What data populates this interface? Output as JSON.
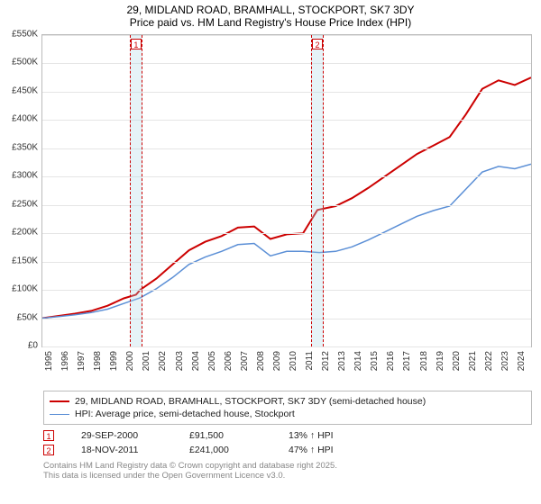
{
  "title": {
    "line1": "29, MIDLAND ROAD, BRAMHALL, STOCKPORT, SK7 3DY",
    "line2": "Price paid vs. HM Land Registry's House Price Index (HPI)"
  },
  "chart": {
    "type": "line",
    "background_color": "#ffffff",
    "grid_color": "#e5e5e5",
    "axis_color": "#bbbbbb",
    "x": {
      "min": 1995,
      "max": 2025,
      "ticks": [
        1995,
        1996,
        1997,
        1998,
        1999,
        2000,
        2001,
        2002,
        2003,
        2004,
        2005,
        2006,
        2007,
        2008,
        2009,
        2010,
        2011,
        2012,
        2013,
        2014,
        2015,
        2016,
        2017,
        2018,
        2019,
        2020,
        2021,
        2022,
        2023,
        2024
      ],
      "label_fontsize": 10
    },
    "y": {
      "min": 0,
      "max": 550000,
      "ticks": [
        0,
        50000,
        100000,
        150000,
        200000,
        250000,
        300000,
        350000,
        400000,
        450000,
        500000,
        550000
      ],
      "tick_labels": [
        "£0",
        "£50K",
        "£100K",
        "£150K",
        "£200K",
        "£250K",
        "£300K",
        "£350K",
        "£400K",
        "£450K",
        "£500K",
        "£550K"
      ],
      "label_fontsize": 10
    },
    "sale_bands": [
      {
        "id": "1",
        "year": 2000.75,
        "width_years": 0.8
      },
      {
        "id": "2",
        "year": 2011.88,
        "width_years": 0.8
      }
    ],
    "sale_band_fill": "rgba(173,216,230,0.30)",
    "sale_band_border": "#cc0000",
    "series": [
      {
        "key": "subject",
        "label": "29, MIDLAND ROAD, BRAMHALL, STOCKPORT, SK7 3DY (semi-detached house)",
        "color": "#cc0000",
        "line_width": 2,
        "points": [
          [
            1995,
            50000
          ],
          [
            1996,
            54000
          ],
          [
            1997,
            58000
          ],
          [
            1998,
            63000
          ],
          [
            1999,
            72000
          ],
          [
            2000,
            85000
          ],
          [
            2000.75,
            91500
          ],
          [
            2001,
            100000
          ],
          [
            2002,
            120000
          ],
          [
            2003,
            145000
          ],
          [
            2004,
            170000
          ],
          [
            2005,
            185000
          ],
          [
            2006,
            195000
          ],
          [
            2007,
            210000
          ],
          [
            2008,
            212000
          ],
          [
            2009,
            190000
          ],
          [
            2010,
            198000
          ],
          [
            2011,
            200000
          ],
          [
            2011.88,
            241000
          ],
          [
            2012,
            242000
          ],
          [
            2013,
            248000
          ],
          [
            2014,
            262000
          ],
          [
            2015,
            280000
          ],
          [
            2016,
            300000
          ],
          [
            2017,
            320000
          ],
          [
            2018,
            340000
          ],
          [
            2019,
            355000
          ],
          [
            2020,
            370000
          ],
          [
            2021,
            410000
          ],
          [
            2022,
            455000
          ],
          [
            2023,
            470000
          ],
          [
            2024,
            462000
          ],
          [
            2025,
            475000
          ]
        ]
      },
      {
        "key": "hpi",
        "label": "HPI: Average price, semi-detached house, Stockport",
        "color": "#5b8fd6",
        "line_width": 1.5,
        "points": [
          [
            1995,
            50000
          ],
          [
            1996,
            53000
          ],
          [
            1997,
            56000
          ],
          [
            1998,
            60000
          ],
          [
            1999,
            66000
          ],
          [
            2000,
            76000
          ],
          [
            2001,
            86000
          ],
          [
            2002,
            102000
          ],
          [
            2003,
            122000
          ],
          [
            2004,
            145000
          ],
          [
            2005,
            158000
          ],
          [
            2006,
            168000
          ],
          [
            2007,
            180000
          ],
          [
            2008,
            182000
          ],
          [
            2009,
            160000
          ],
          [
            2010,
            168000
          ],
          [
            2011,
            168000
          ],
          [
            2012,
            166000
          ],
          [
            2013,
            168000
          ],
          [
            2014,
            176000
          ],
          [
            2015,
            188000
          ],
          [
            2016,
            202000
          ],
          [
            2017,
            216000
          ],
          [
            2018,
            230000
          ],
          [
            2019,
            240000
          ],
          [
            2020,
            248000
          ],
          [
            2021,
            278000
          ],
          [
            2022,
            308000
          ],
          [
            2023,
            318000
          ],
          [
            2024,
            314000
          ],
          [
            2025,
            322000
          ]
        ]
      }
    ]
  },
  "legend": {
    "rows": [
      {
        "color": "#cc0000",
        "width": 2,
        "label": "29, MIDLAND ROAD, BRAMHALL, STOCKPORT, SK7 3DY (semi-detached house)"
      },
      {
        "color": "#5b8fd6",
        "width": 1.5,
        "label": "HPI: Average price, semi-detached house, Stockport"
      }
    ]
  },
  "sales": [
    {
      "id": "1",
      "date": "29-SEP-2000",
      "price": "£91,500",
      "delta": "13% ↑ HPI"
    },
    {
      "id": "2",
      "date": "18-NOV-2011",
      "price": "£241,000",
      "delta": "47% ↑ HPI"
    }
  ],
  "footer": {
    "line1": "Contains HM Land Registry data © Crown copyright and database right 2025.",
    "line2": "This data is licensed under the Open Government Licence v3.0."
  }
}
